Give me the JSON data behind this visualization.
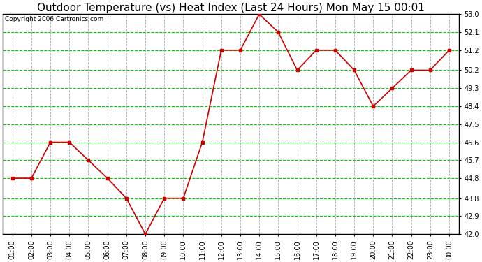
{
  "title": "Outdoor Temperature (vs) Heat Index (Last 24 Hours) Mon May 15 00:01",
  "copyright": "Copyright 2006 Cartronics.com",
  "x_labels": [
    "01:00",
    "02:00",
    "03:00",
    "04:00",
    "05:00",
    "06:00",
    "07:00",
    "08:00",
    "09:00",
    "10:00",
    "11:00",
    "12:00",
    "13:00",
    "14:00",
    "15:00",
    "16:00",
    "17:00",
    "18:00",
    "19:00",
    "20:00",
    "21:00",
    "22:00",
    "23:00",
    "00:00"
  ],
  "y_values": [
    44.8,
    44.8,
    46.6,
    46.6,
    45.7,
    44.8,
    43.8,
    42.0,
    43.8,
    43.8,
    46.6,
    51.2,
    51.2,
    53.0,
    52.1,
    50.2,
    51.2,
    51.2,
    50.2,
    48.4,
    49.3,
    50.2,
    50.2,
    51.2
  ],
  "line_color": "#cc0000",
  "marker_color": "#cc0000",
  "bg_color": "#ffffff",
  "plot_bg_color": "#ffffff",
  "grid_color_h": "#00cc00",
  "grid_color_v": "#aaaaaa",
  "border_color": "#000000",
  "title_color": "#000000",
  "ylim_min": 42.0,
  "ylim_max": 53.0,
  "ytick_values": [
    42.0,
    42.9,
    43.8,
    44.8,
    45.7,
    46.6,
    47.5,
    48.4,
    49.3,
    50.2,
    51.2,
    52.1,
    53.0
  ],
  "title_fontsize": 11,
  "tick_fontsize": 7,
  "copyright_fontsize": 6.5
}
